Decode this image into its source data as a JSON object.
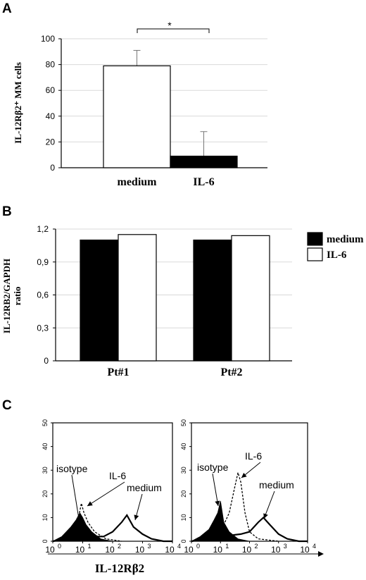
{
  "panels": {
    "a": {
      "letter": "A"
    },
    "b": {
      "letter": "B"
    },
    "c": {
      "letter": "C"
    }
  },
  "chart_data": [
    {
      "type": "bar",
      "ylabel": "IL-12Rβ2⁺ MM cells",
      "ylim": [
        0,
        100
      ],
      "yticks": [
        "0",
        "20",
        "40",
        "60",
        "80",
        "100"
      ],
      "grid": true,
      "categories": [
        "medium",
        "IL-6"
      ],
      "values": [
        79,
        9
      ],
      "errors": [
        12,
        19
      ],
      "colors": [
        "#ffffff",
        "#000000"
      ],
      "significance": "*"
    },
    {
      "type": "bar",
      "ylabel": "IL-12RB2/GAPDH",
      "ylabel2": "ratio",
      "ylim": [
        0,
        1.2
      ],
      "yticks": [
        "0",
        "0,3",
        "0,6",
        "0,9",
        "1,2"
      ],
      "grid": true,
      "categories": [
        "Pt#1",
        "Pt#2"
      ],
      "series": [
        {
          "name": "medium",
          "values": [
            1.1,
            1.1
          ],
          "color": "#000000"
        },
        {
          "name": "IL-6",
          "values": [
            1.15,
            1.14
          ],
          "color": "#ffffff"
        }
      ],
      "legend_position": "right"
    },
    {
      "type": "line",
      "xlabel": "IL-12Rβ2",
      "xscale": "log",
      "xlim": [
        1,
        10000
      ],
      "ylim": [
        0,
        50
      ],
      "yticks": [
        "0",
        "10",
        "20",
        "30",
        "40",
        "50"
      ],
      "xtick_base": "10",
      "xtick_exps": [
        "0",
        "1",
        "2",
        "3",
        "4"
      ],
      "histograms": [
        {
          "annotations": [
            "isotype",
            "IL-6",
            "medium"
          ],
          "isotype": {
            "x": [
              1,
              2,
              4,
              6,
              8,
              10,
              13,
              20,
              40,
              100
            ],
            "y": [
              0,
              2,
              6,
              9,
              12,
              10,
              7,
              4,
              1,
              0
            ]
          },
          "IL-6": {
            "x": [
              1,
              3,
              5,
              7,
              9,
              11,
              15,
              25,
              60,
              200
            ],
            "y": [
              0,
              2,
              5,
              9,
              16,
              12,
              8,
              4,
              1,
              0
            ]
          },
          "medium": {
            "x": [
              1,
              10,
              50,
              100,
              200,
              300,
              500,
              1000,
              2000,
              5000,
              10000
            ],
            "y": [
              0,
              2,
              2,
              4,
              8,
              11,
              6,
              3,
              1,
              0,
              0
            ]
          }
        },
        {
          "annotations": [
            "isotype",
            "IL-6",
            "medium"
          ],
          "isotype": {
            "x": [
              1,
              2,
              4,
              6,
              8,
              10,
              13,
              20,
              40,
              100
            ],
            "y": [
              0,
              2,
              5,
              9,
              12,
              17,
              8,
              4,
              1,
              0
            ]
          },
          "IL-6": {
            "x": [
              1,
              5,
              10,
              20,
              30,
              40,
              50,
              70,
              100,
              200,
              1000
            ],
            "y": [
              0,
              1,
              4,
              12,
              22,
              29,
              25,
              12,
              4,
              1,
              0
            ]
          },
          "medium": {
            "x": [
              1,
              10,
              50,
              100,
              200,
              300,
              500,
              1000,
              2000,
              5000,
              10000
            ],
            "y": [
              0,
              2,
              3,
              4,
              8,
              10,
              7,
              3,
              1,
              0,
              0
            ]
          }
        }
      ]
    }
  ]
}
